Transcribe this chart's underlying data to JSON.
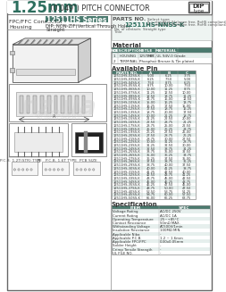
{
  "title_big": "1.25mm",
  "title_small": " (0.049\") PITCH CONNECTOR",
  "dip_label": "DIP\ntype",
  "series_label": "12511HS Series",
  "connector_type": "FPC/FFC Connector\nHousing",
  "dip_desc": "DIP, NON-ZIF(Vertical Through Hole)",
  "straight": "Straight",
  "parts_no_title": "PARTS NO.",
  "parts_no": "12511HS-NNSS-K",
  "option_label": "Option",
  "select_type": "Select type",
  "option1": "S = standard (Halogen free, RoHS compliant)",
  "option2": "K = standard (Halogen free, RoHS compliant)",
  "contacts_label": "No. of contacts  Straight type",
  "title_label": "Title",
  "material_title": "Material",
  "mat_headers": [
    "NO.",
    "DESCRIPTION",
    "TITLE",
    "MATERIAL"
  ],
  "mat_rows": [
    [
      "1",
      "HOUSING",
      "125T-HS",
      "PBT, UL 94V-0 Grade"
    ],
    [
      "2",
      "TERMINAL",
      "",
      "Phosphor Bronze & Tin plated"
    ]
  ],
  "avail_pin_title": "Available Pin",
  "pin_headers": [
    "PARTS NO.",
    "A",
    "B",
    "C"
  ],
  "pin_rows": [
    [
      "12511HS-02SS-K",
      "5.00",
      "6.25",
      "3.75"
    ],
    [
      "12511HS-03SS-K",
      "6.25",
      "7.50",
      "5.00"
    ],
    [
      "12511HS-04SS-K",
      "7.50",
      "8.75",
      "6.25"
    ],
    [
      "12511HS-05SS-K",
      "8.75",
      "10.00",
      "7.50"
    ],
    [
      "12511HS-06SS-K",
      "10.00",
      "11.25",
      "8.75"
    ],
    [
      "12511HS-07SS-K",
      "11.25",
      "12.50",
      "10.00"
    ],
    [
      "12511HS-08SS-K",
      "12.50",
      "13.75",
      "11.25"
    ],
    [
      "12511HS-09SS-K",
      "13.75",
      "15.00",
      "12.50"
    ],
    [
      "12511HS-10SS-K",
      "15.00",
      "16.25",
      "13.75"
    ],
    [
      "12511HS-11SS-K",
      "16.25",
      "17.50",
      "15.00"
    ],
    [
      "12511HS-12SS-K",
      "17.50",
      "18.75",
      "16.25"
    ],
    [
      "12511HS-13SS-K",
      "18.75",
      "20.00",
      "17.50"
    ],
    [
      "12511HS-14SS-K",
      "20.00",
      "21.25",
      "18.75"
    ],
    [
      "12511HS-15SS-K",
      "21.25",
      "22.50",
      "20.00"
    ],
    [
      "12511HS-16SS-K",
      "22.50",
      "23.75",
      "21.25"
    ],
    [
      "12511HS-17SS-K",
      "23.75",
      "25.00",
      "22.50"
    ],
    [
      "12511HS-18SS-K",
      "25.00",
      "26.25",
      "23.75"
    ],
    [
      "12511HS-19SS-K",
      "26.25",
      "27.50",
      "25.00"
    ],
    [
      "12511HS-20SS-K",
      "27.50",
      "28.75",
      "26.25"
    ],
    [
      "12511HS-21SS-K",
      "28.75",
      "30.00",
      "27.50"
    ],
    [
      "12511HS-22SS-K",
      "30.00",
      "31.25",
      "28.75"
    ],
    [
      "12511HS-23SS-K",
      "31.25",
      "32.50",
      "30.00"
    ],
    [
      "12511HS-24SS-K",
      "32.50",
      "33.75",
      "31.25"
    ],
    [
      "12511HS-25SS-K",
      "33.75",
      "35.00",
      "32.50"
    ],
    [
      "12511HS-26SS-K",
      "35.00",
      "36.25",
      "33.75"
    ],
    [
      "12511HS-27SS-K",
      "36.25",
      "37.50",
      "35.00"
    ],
    [
      "12511HS-28SS-K",
      "37.50",
      "38.75",
      "36.25"
    ],
    [
      "12511HS-29SS-K",
      "38.75",
      "40.00",
      "37.50"
    ],
    [
      "12511HS-30SS-K",
      "40.00",
      "41.25",
      "38.75"
    ],
    [
      "12511HS-31SS-K",
      "41.25",
      "42.50",
      "40.00"
    ],
    [
      "12511HS-32SS-K",
      "42.50",
      "43.75",
      "41.25"
    ],
    [
      "12511HS-33SS-K",
      "43.75",
      "45.00",
      "42.50"
    ],
    [
      "12511HS-34SS-K",
      "45.00",
      "46.25",
      "43.75"
    ],
    [
      "12511HS-35SS-K",
      "46.25",
      "47.50",
      "45.00"
    ],
    [
      "12511HS-37SS-K",
      "48.75",
      "50.00",
      "47.50"
    ],
    [
      "12511HS-40SS-K",
      "52.50",
      "53.75",
      "51.25"
    ],
    [
      "12511HS-45SS-K",
      "58.75",
      "60.00",
      "57.50"
    ],
    [
      "12511HS-50SS-K",
      "65.00",
      "66.25",
      "63.75"
    ]
  ],
  "spec_title": "Specification",
  "spec_headers": [
    "ITEM",
    "SPEC"
  ],
  "spec_rows": [
    [
      "Voltage Rating",
      "AC/DC 250V"
    ],
    [
      "Current Rating",
      "AC/DC 1A"
    ],
    [
      "Operating Temperature",
      "-25~+85°C"
    ],
    [
      "Contact Resistance",
      "50mΩ MAX."
    ],
    [
      "Withstanding Voltage",
      "AC500V/1min"
    ],
    [
      "Insulation Resistance",
      "100MΩ MIN."
    ],
    [
      "Applicable Niba",
      "-"
    ],
    [
      "Applicable P.C.B.",
      "1.2 ~ 1.6mm"
    ],
    [
      "Applicable FPC/FPC",
      "0.30x0.05mm"
    ],
    [
      "Solder Height",
      "-"
    ],
    [
      "Crimp Tensile Strength",
      "-"
    ],
    [
      "UL FILE NO.",
      "-"
    ]
  ],
  "bg_color": "#ffffff",
  "header_bg": "#4a7a6e",
  "header_text": "#ffffff",
  "title_color": "#2d6e5e",
  "border_color": "#888888",
  "table_alt": "#e6efed",
  "series_bg": "#4a7a6e",
  "series_text": "#ffffff",
  "parts_bg": "#eef4f2"
}
